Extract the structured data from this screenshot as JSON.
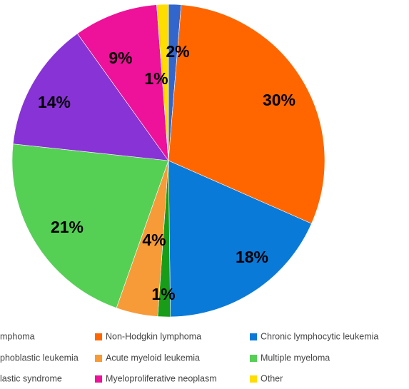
{
  "chart_data": {
    "type": "pie",
    "start_angle_deg": 0,
    "direction": "clockwise",
    "slices": [
      {
        "name": "Hodgkin lymphoma",
        "value": 1,
        "label": "",
        "color": "#3366cc",
        "legend_text": "mphoma"
      },
      {
        "name": "Non-Hodgkin lymphoma",
        "value": 30,
        "label": "30%",
        "color": "#ff6600",
        "legend_text": "Non-Hodgkin lymphoma"
      },
      {
        "name": "Chronic lymphocytic leukemia",
        "value": 18,
        "label": "18%",
        "color": "#0a7ad8",
        "legend_text": "Chronic lymphocytic leukemia"
      },
      {
        "name": "Acute lymphoblastic leukemia",
        "value": 1,
        "label": "1%",
        "color": "#199d19",
        "legend_text": "phoblastic leukemia"
      },
      {
        "name": "Acute myeloid leukemia",
        "value": 4,
        "label": "4%",
        "color": "#f79a38",
        "legend_text": "Acute myeloid leukemia"
      },
      {
        "name": "Multiple myeloma",
        "value": 21,
        "label": "21%",
        "color": "#55d055",
        "legend_text": "Multiple myeloma"
      },
      {
        "name": "Myelodysplastic syndrome",
        "value": 14,
        "label": "14%",
        "color": "#8833d6",
        "legend_text": "lastic syndrome"
      },
      {
        "name": "Myeloproliferative neoplasm",
        "value": 9,
        "label": "9%",
        "color": "#ee1199",
        "legend_text": "Myeloproliferative neoplasm"
      },
      {
        "name": "Other",
        "value": 1,
        "label": "1%",
        "color": "#ffdd00",
        "legend_text": "Other"
      }
    ],
    "extra_labels": [
      "2%"
    ],
    "legend": {
      "placement": "bottom",
      "columns": 3
    }
  }
}
